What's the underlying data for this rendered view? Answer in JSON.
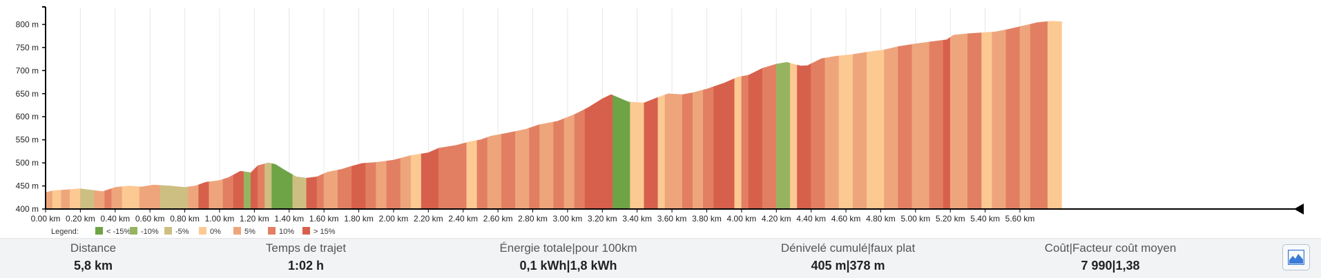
{
  "chart_data": {
    "type": "area",
    "ylabel": "",
    "xlabel": "",
    "y_ticks": [
      "400 m",
      "450 m",
      "500 m",
      "550 m",
      "600 m",
      "650 m",
      "700 m",
      "750 m",
      "800 m"
    ],
    "y_tick_values": [
      400,
      450,
      500,
      550,
      600,
      650,
      700,
      750,
      800
    ],
    "ylim": [
      400,
      835
    ],
    "x_ticks": [
      "0.00 km",
      "0.20 km",
      "0.40 km",
      "0.60 km",
      "0.80 km",
      "1.00 km",
      "1.20 km",
      "1.40 km",
      "1.60 km",
      "1.80 km",
      "2.00 km",
      "2.20 km",
      "2.40 km",
      "2.60 km",
      "2.80 km",
      "3.00 km",
      "3.20 km",
      "3.40 km",
      "3.60 km",
      "3.80 km",
      "4.00 km",
      "4.20 km",
      "4.40 km",
      "4.60 km",
      "4.80 km",
      "5.00 km",
      "5.20 km",
      "5.40 km",
      "5.60 km"
    ],
    "x_tick_values": [
      0,
      0.2,
      0.4,
      0.6,
      0.8,
      1.0,
      1.2,
      1.4,
      1.6,
      1.8,
      2.0,
      2.2,
      2.4,
      2.6,
      2.8,
      3.0,
      3.2,
      3.4,
      3.6,
      3.8,
      4.0,
      4.2,
      4.4,
      4.6,
      4.8,
      5.0,
      5.2,
      5.4,
      5.6
    ],
    "xlim": [
      0,
      5.85
    ],
    "legend_title": "Legend:",
    "legend_placement": "bottom-left",
    "legend": [
      {
        "label": "< -15%",
        "color": "#6ea346"
      },
      {
        "label": "-10%",
        "color": "#96b45f"
      },
      {
        "label": "-5%",
        "color": "#cdbf82"
      },
      {
        "label": "0%",
        "color": "#fdc993"
      },
      {
        "label": "5%",
        "color": "#eea57c"
      },
      {
        "label": "10%",
        "color": "#e27f62"
      },
      {
        "label": "> 15%",
        "color": "#d7604c"
      }
    ],
    "profile_points": [
      {
        "x": 0.0,
        "y": 436
      },
      {
        "x": 0.05,
        "y": 440
      },
      {
        "x": 0.13,
        "y": 442
      },
      {
        "x": 0.2,
        "y": 444
      },
      {
        "x": 0.28,
        "y": 440
      },
      {
        "x": 0.33,
        "y": 438
      },
      {
        "x": 0.4,
        "y": 447
      },
      {
        "x": 0.48,
        "y": 450
      },
      {
        "x": 0.55,
        "y": 448
      },
      {
        "x": 0.62,
        "y": 452
      },
      {
        "x": 0.72,
        "y": 450
      },
      {
        "x": 0.8,
        "y": 447
      },
      {
        "x": 0.86,
        "y": 450
      },
      {
        "x": 0.92,
        "y": 458
      },
      {
        "x": 1.0,
        "y": 462
      },
      {
        "x": 1.05,
        "y": 468
      },
      {
        "x": 1.12,
        "y": 482
      },
      {
        "x": 1.18,
        "y": 479
      },
      {
        "x": 1.22,
        "y": 494
      },
      {
        "x": 1.28,
        "y": 500
      },
      {
        "x": 1.32,
        "y": 497
      },
      {
        "x": 1.38,
        "y": 483
      },
      {
        "x": 1.44,
        "y": 470
      },
      {
        "x": 1.5,
        "y": 467
      },
      {
        "x": 1.56,
        "y": 470
      },
      {
        "x": 1.62,
        "y": 480
      },
      {
        "x": 1.7,
        "y": 486
      },
      {
        "x": 1.76,
        "y": 493
      },
      {
        "x": 1.82,
        "y": 499
      },
      {
        "x": 1.9,
        "y": 501
      },
      {
        "x": 2.0,
        "y": 506
      },
      {
        "x": 2.1,
        "y": 516
      },
      {
        "x": 2.2,
        "y": 522
      },
      {
        "x": 2.26,
        "y": 532
      },
      {
        "x": 2.36,
        "y": 538
      },
      {
        "x": 2.44,
        "y": 546
      },
      {
        "x": 2.5,
        "y": 550
      },
      {
        "x": 2.56,
        "y": 558
      },
      {
        "x": 2.66,
        "y": 565
      },
      {
        "x": 2.76,
        "y": 573
      },
      {
        "x": 2.84,
        "y": 583
      },
      {
        "x": 2.94,
        "y": 590
      },
      {
        "x": 3.04,
        "y": 605
      },
      {
        "x": 3.12,
        "y": 620
      },
      {
        "x": 3.2,
        "y": 639
      },
      {
        "x": 3.25,
        "y": 648
      },
      {
        "x": 3.35,
        "y": 632
      },
      {
        "x": 3.44,
        "y": 630
      },
      {
        "x": 3.52,
        "y": 642
      },
      {
        "x": 3.58,
        "y": 650
      },
      {
        "x": 3.66,
        "y": 648
      },
      {
        "x": 3.72,
        "y": 652
      },
      {
        "x": 3.8,
        "y": 660
      },
      {
        "x": 3.9,
        "y": 673
      },
      {
        "x": 3.98,
        "y": 686
      },
      {
        "x": 4.04,
        "y": 690
      },
      {
        "x": 4.12,
        "y": 705
      },
      {
        "x": 4.2,
        "y": 714
      },
      {
        "x": 4.26,
        "y": 718
      },
      {
        "x": 4.34,
        "y": 710
      },
      {
        "x": 4.38,
        "y": 711
      },
      {
        "x": 4.46,
        "y": 726
      },
      {
        "x": 4.54,
        "y": 731
      },
      {
        "x": 4.64,
        "y": 735
      },
      {
        "x": 4.72,
        "y": 740
      },
      {
        "x": 4.82,
        "y": 745
      },
      {
        "x": 4.9,
        "y": 752
      },
      {
        "x": 5.0,
        "y": 758
      },
      {
        "x": 5.1,
        "y": 763
      },
      {
        "x": 5.18,
        "y": 767
      },
      {
        "x": 5.22,
        "y": 777
      },
      {
        "x": 5.3,
        "y": 780
      },
      {
        "x": 5.38,
        "y": 782
      },
      {
        "x": 5.46,
        "y": 784
      },
      {
        "x": 5.54,
        "y": 790
      },
      {
        "x": 5.62,
        "y": 797
      },
      {
        "x": 5.7,
        "y": 804
      },
      {
        "x": 5.78,
        "y": 807
      },
      {
        "x": 5.84,
        "y": 806
      }
    ],
    "gradient_segments": [
      {
        "from": 0.0,
        "to": 0.04,
        "class": "5%"
      },
      {
        "from": 0.04,
        "to": 0.09,
        "class": "0%"
      },
      {
        "from": 0.09,
        "to": 0.14,
        "class": "5%"
      },
      {
        "from": 0.14,
        "to": 0.2,
        "class": "0%"
      },
      {
        "from": 0.2,
        "to": 0.28,
        "class": "-5%"
      },
      {
        "from": 0.28,
        "to": 0.34,
        "class": "5%"
      },
      {
        "from": 0.34,
        "to": 0.38,
        "class": "10%"
      },
      {
        "from": 0.38,
        "to": 0.44,
        "class": "5%"
      },
      {
        "from": 0.44,
        "to": 0.54,
        "class": "0%"
      },
      {
        "from": 0.54,
        "to": 0.66,
        "class": "5%"
      },
      {
        "from": 0.66,
        "to": 0.82,
        "class": "-5%"
      },
      {
        "from": 0.82,
        "to": 0.88,
        "class": "5%"
      },
      {
        "from": 0.88,
        "to": 0.94,
        "class": "> 15%"
      },
      {
        "from": 0.94,
        "to": 1.02,
        "class": "5%"
      },
      {
        "from": 1.02,
        "to": 1.08,
        "class": "10%"
      },
      {
        "from": 1.08,
        "to": 1.14,
        "class": "> 15%"
      },
      {
        "from": 1.14,
        "to": 1.18,
        "class": "-10%"
      },
      {
        "from": 1.18,
        "to": 1.22,
        "class": "> 15%"
      },
      {
        "from": 1.22,
        "to": 1.26,
        "class": "10%"
      },
      {
        "from": 1.26,
        "to": 1.3,
        "class": "-5%"
      },
      {
        "from": 1.3,
        "to": 1.42,
        "class": "< -15%"
      },
      {
        "from": 1.42,
        "to": 1.5,
        "class": "-5%"
      },
      {
        "from": 1.5,
        "to": 1.56,
        "class": "> 15%"
      },
      {
        "from": 1.56,
        "to": 1.6,
        "class": "10%"
      },
      {
        "from": 1.6,
        "to": 1.68,
        "class": "5%"
      },
      {
        "from": 1.68,
        "to": 1.76,
        "class": "10%"
      },
      {
        "from": 1.76,
        "to": 1.84,
        "class": "> 15%"
      },
      {
        "from": 1.84,
        "to": 1.9,
        "class": "10%"
      },
      {
        "from": 1.9,
        "to": 1.96,
        "class": "5%"
      },
      {
        "from": 1.96,
        "to": 2.04,
        "class": "10%"
      },
      {
        "from": 2.04,
        "to": 2.1,
        "class": "5%"
      },
      {
        "from": 2.1,
        "to": 2.16,
        "class": "0%"
      },
      {
        "from": 2.16,
        "to": 2.26,
        "class": "> 15%"
      },
      {
        "from": 2.26,
        "to": 2.42,
        "class": "10%"
      },
      {
        "from": 2.42,
        "to": 2.48,
        "class": "0%"
      },
      {
        "from": 2.48,
        "to": 2.54,
        "class": "10%"
      },
      {
        "from": 2.54,
        "to": 2.62,
        "class": "5%"
      },
      {
        "from": 2.62,
        "to": 2.7,
        "class": "10%"
      },
      {
        "from": 2.7,
        "to": 2.78,
        "class": "5%"
      },
      {
        "from": 2.78,
        "to": 2.84,
        "class": "10%"
      },
      {
        "from": 2.84,
        "to": 2.92,
        "class": "5%"
      },
      {
        "from": 2.92,
        "to": 2.98,
        "class": "10%"
      },
      {
        "from": 2.98,
        "to": 3.04,
        "class": "5%"
      },
      {
        "from": 3.04,
        "to": 3.1,
        "class": "10%"
      },
      {
        "from": 3.1,
        "to": 3.26,
        "class": "> 15%"
      },
      {
        "from": 3.26,
        "to": 3.36,
        "class": "< -15%"
      },
      {
        "from": 3.36,
        "to": 3.44,
        "class": "0%"
      },
      {
        "from": 3.44,
        "to": 3.52,
        "class": "> 15%"
      },
      {
        "from": 3.52,
        "to": 3.56,
        "class": "0%"
      },
      {
        "from": 3.56,
        "to": 3.66,
        "class": "5%"
      },
      {
        "from": 3.66,
        "to": 3.72,
        "class": "10%"
      },
      {
        "from": 3.72,
        "to": 3.78,
        "class": "5%"
      },
      {
        "from": 3.78,
        "to": 3.84,
        "class": "10%"
      },
      {
        "from": 3.84,
        "to": 3.96,
        "class": "> 15%"
      },
      {
        "from": 3.96,
        "to": 4.0,
        "class": "0%"
      },
      {
        "from": 4.0,
        "to": 4.04,
        "class": "10%"
      },
      {
        "from": 4.04,
        "to": 4.12,
        "class": "> 15%"
      },
      {
        "from": 4.12,
        "to": 4.2,
        "class": "10%"
      },
      {
        "from": 4.2,
        "to": 4.28,
        "class": "-10%"
      },
      {
        "from": 4.28,
        "to": 4.32,
        "class": "0%"
      },
      {
        "from": 4.32,
        "to": 4.4,
        "class": "> 15%"
      },
      {
        "from": 4.4,
        "to": 4.48,
        "class": "10%"
      },
      {
        "from": 4.48,
        "to": 4.56,
        "class": "5%"
      },
      {
        "from": 4.56,
        "to": 4.64,
        "class": "0%"
      },
      {
        "from": 4.64,
        "to": 4.72,
        "class": "5%"
      },
      {
        "from": 4.72,
        "to": 4.82,
        "class": "0%"
      },
      {
        "from": 4.82,
        "to": 4.9,
        "class": "5%"
      },
      {
        "from": 4.9,
        "to": 4.98,
        "class": "10%"
      },
      {
        "from": 4.98,
        "to": 5.08,
        "class": "5%"
      },
      {
        "from": 5.08,
        "to": 5.16,
        "class": "10%"
      },
      {
        "from": 5.16,
        "to": 5.2,
        "class": "> 15%"
      },
      {
        "from": 5.2,
        "to": 5.3,
        "class": "5%"
      },
      {
        "from": 5.3,
        "to": 5.38,
        "class": "10%"
      },
      {
        "from": 5.38,
        "to": 5.44,
        "class": "0%"
      },
      {
        "from": 5.44,
        "to": 5.52,
        "class": "5%"
      },
      {
        "from": 5.52,
        "to": 5.6,
        "class": "10%"
      },
      {
        "from": 5.6,
        "to": 5.66,
        "class": "5%"
      },
      {
        "from": 5.66,
        "to": 5.76,
        "class": "10%"
      },
      {
        "from": 5.76,
        "to": 5.84,
        "class": "0%"
      }
    ],
    "grid": {
      "vertical": true,
      "horizontal": false
    }
  },
  "stats": [
    {
      "label": "Distance",
      "value": "5,8 km"
    },
    {
      "label": "Temps de trajet",
      "value": "1:02 h"
    },
    {
      "label": "Énergie totale|pour 100km",
      "value": "0,1 kWh|1,8 kWh"
    },
    {
      "label": "Dénivelé cumulé|faux plat",
      "value": "405 m|378 m"
    },
    {
      "label": "Coût|Facteur coût moyen",
      "value": "7 990|1,38"
    }
  ],
  "icons": {
    "profile_button": "mountain-profile-icon"
  },
  "colors": {
    "accent": "#3b7bd6",
    "axis": "#000000",
    "grid": "#e6e6e6",
    "panel": "#f1f3f5"
  }
}
